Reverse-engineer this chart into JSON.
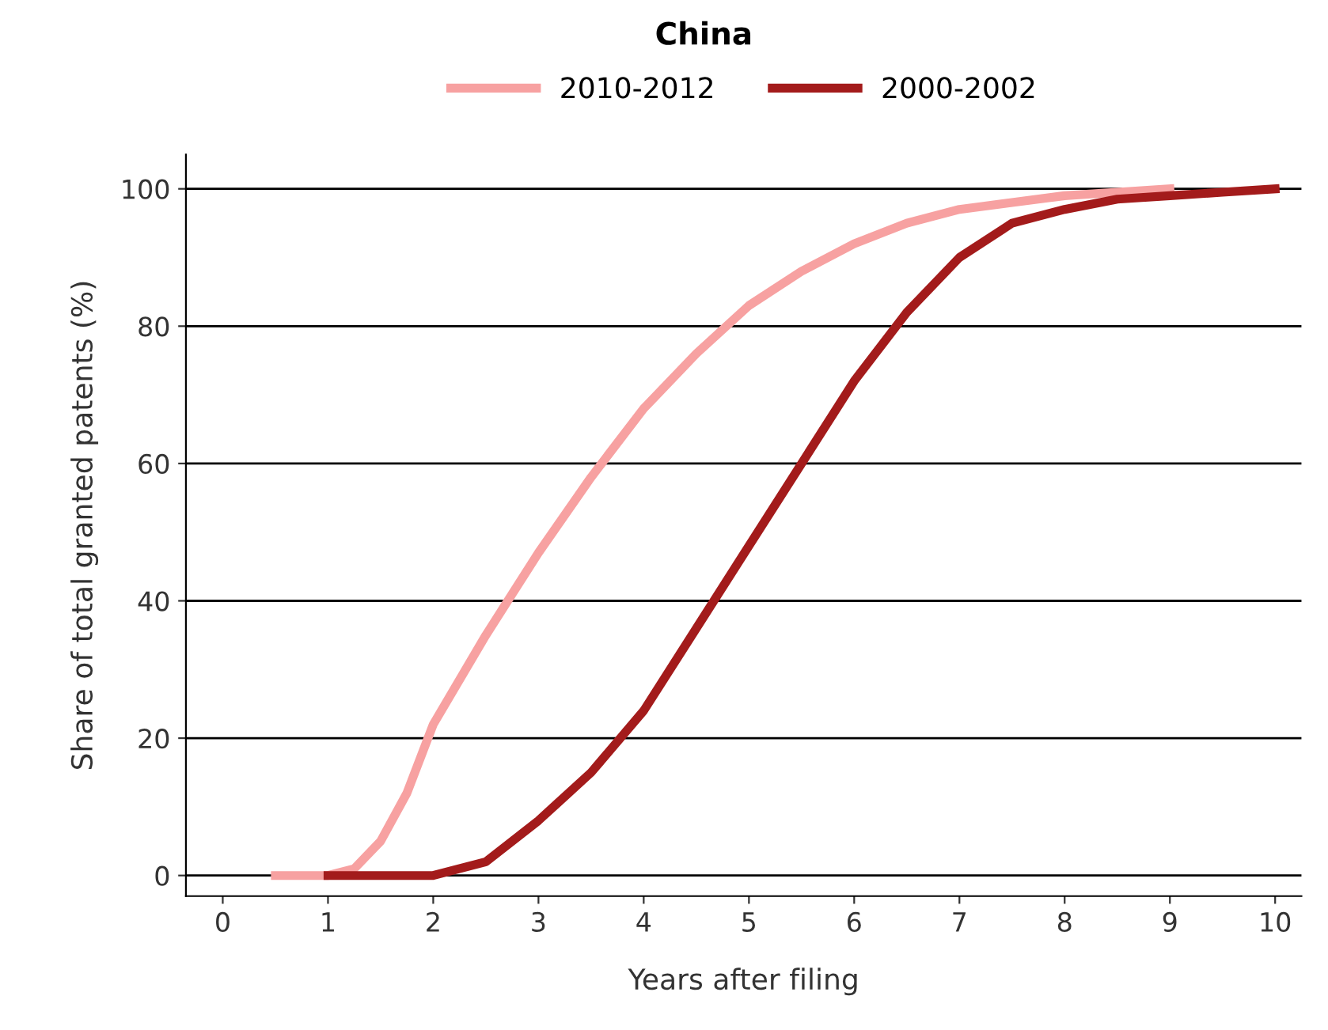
{
  "chart_data": {
    "type": "line",
    "title": "China",
    "xlabel": "Years after filing",
    "ylabel": "Share of total granted patents (%)",
    "xlim": [
      -0.35,
      10.25
    ],
    "xticks": [
      0,
      1,
      2,
      3,
      4,
      5,
      6,
      7,
      8,
      9,
      10
    ],
    "ylim": [
      -3,
      105
    ],
    "yticks": [
      0,
      20,
      40,
      60,
      80,
      100
    ],
    "grid": "y",
    "legend": "top",
    "marker": "none",
    "line_style": "solid",
    "series": [
      {
        "name": "2010-2012",
        "color": "#f7a1a1",
        "x": [
          0.5,
          1,
          1.25,
          1.5,
          1.75,
          2,
          2.5,
          3,
          3.5,
          4,
          4.5,
          5,
          5.5,
          6,
          6.5,
          7,
          7.5,
          8,
          8.5,
          9
        ],
        "values": [
          0,
          0,
          1,
          5,
          12,
          22,
          35,
          47,
          58,
          68,
          76,
          83,
          88,
          92,
          95,
          97,
          98,
          99,
          99.5,
          100
        ]
      },
      {
        "name": "2000-2002",
        "color": "#a31b1b",
        "x": [
          1,
          1.5,
          2,
          2.5,
          3,
          3.5,
          4,
          4.5,
          5,
          5.5,
          6,
          6.5,
          7,
          7.5,
          8,
          8.5,
          9,
          9.5,
          10
        ],
        "values": [
          0,
          0,
          0,
          2,
          8,
          15,
          24,
          36,
          48,
          60,
          72,
          82,
          90,
          95,
          97,
          98.5,
          99,
          99.5,
          100
        ]
      }
    ]
  }
}
